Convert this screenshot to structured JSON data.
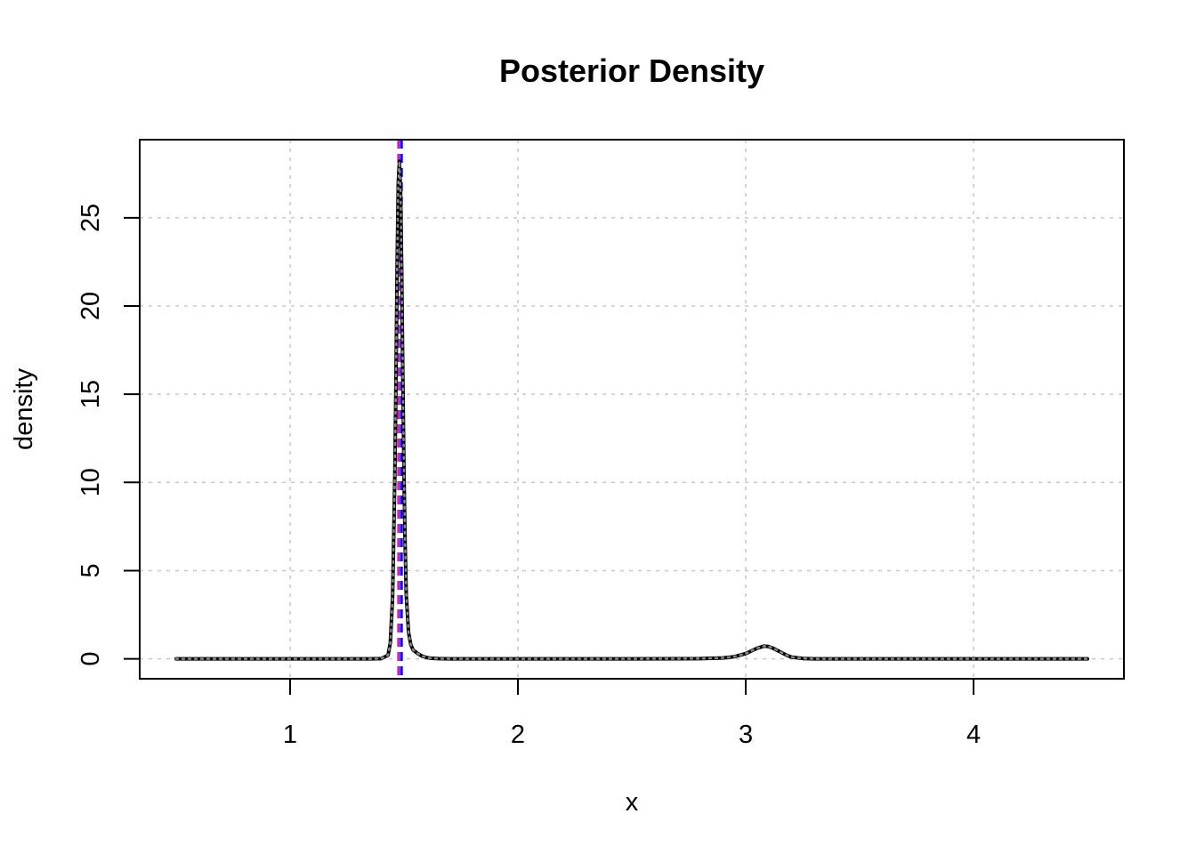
{
  "chart_data": {
    "type": "line",
    "title": "Posterior Density",
    "xlabel": "x",
    "ylabel": "density",
    "xlim": [
      0.34,
      4.66
    ],
    "ylim": [
      -1.13,
      29.43
    ],
    "x_ticks": [
      1,
      2,
      3,
      4
    ],
    "y_ticks": [
      0,
      5,
      10,
      15,
      20,
      25
    ],
    "x_tick_labels": [
      "1",
      "2",
      "3",
      "4"
    ],
    "y_tick_labels": [
      "0",
      "5",
      "10",
      "15",
      "20",
      "25"
    ],
    "grid": true,
    "series": [
      {
        "color": "#000000",
        "style": "solid",
        "x": [
          0.5,
          0.8,
          1.0,
          1.2,
          1.35,
          1.4,
          1.43,
          1.44,
          1.45,
          1.46,
          1.465,
          1.47,
          1.475,
          1.48,
          1.485,
          1.49,
          1.495,
          1.5,
          1.505,
          1.51,
          1.52,
          1.53,
          1.54,
          1.56,
          1.58,
          1.6,
          1.62,
          1.65,
          1.7,
          1.8,
          2.0,
          2.2,
          2.5,
          2.8,
          2.9,
          2.95,
          3.0,
          3.02,
          3.05,
          3.08,
          3.1,
          3.12,
          3.15,
          3.18,
          3.2,
          3.25,
          3.3,
          3.5,
          4.0,
          4.5
        ],
        "y": [
          0,
          0,
          0,
          0,
          0,
          0.01,
          0.2,
          0.9,
          3.5,
          10.5,
          16.0,
          22.5,
          27.0,
          28.2,
          26.5,
          22.0,
          16.0,
          10.5,
          6.5,
          3.6,
          1.5,
          0.8,
          0.5,
          0.3,
          0.15,
          0.07,
          0.03,
          0.01,
          0,
          0,
          0,
          0,
          0,
          0.01,
          0.05,
          0.12,
          0.3,
          0.42,
          0.6,
          0.72,
          0.7,
          0.6,
          0.4,
          0.2,
          0.1,
          0.02,
          0,
          0,
          0,
          0
        ]
      },
      {
        "color": "#888888",
        "style": "dotted",
        "x": [
          0.5,
          0.8,
          1.0,
          1.2,
          1.35,
          1.4,
          1.43,
          1.44,
          1.45,
          1.46,
          1.465,
          1.47,
          1.475,
          1.48,
          1.485,
          1.49,
          1.495,
          1.5,
          1.505,
          1.51,
          1.52,
          1.53,
          1.54,
          1.56,
          1.58,
          1.6,
          1.62,
          1.65,
          1.7,
          1.8,
          2.0,
          2.2,
          2.5,
          2.8,
          2.9,
          2.95,
          3.0,
          3.02,
          3.05,
          3.08,
          3.1,
          3.12,
          3.15,
          3.18,
          3.2,
          3.25,
          3.3,
          3.5,
          4.0,
          4.5
        ],
        "y": [
          0,
          0,
          0,
          0,
          0,
          0.01,
          0.2,
          0.9,
          3.5,
          10.5,
          16.0,
          22.5,
          27.0,
          28.2,
          26.5,
          22.0,
          16.0,
          10.5,
          6.5,
          3.6,
          1.5,
          0.8,
          0.5,
          0.3,
          0.15,
          0.07,
          0.03,
          0.01,
          0,
          0,
          0,
          0,
          0,
          0.01,
          0.05,
          0.12,
          0.3,
          0.42,
          0.6,
          0.72,
          0.7,
          0.6,
          0.4,
          0.2,
          0.1,
          0.02,
          0,
          0,
          0,
          0
        ]
      }
    ],
    "vlines": [
      {
        "x": 1.475,
        "color": "#ff1493",
        "style": "dashed"
      },
      {
        "x": 1.48,
        "color": "#9b30ff",
        "style": "dashed"
      },
      {
        "x": 1.49,
        "color": "#0000ff",
        "style": "dashed"
      }
    ],
    "colors": {
      "grid": "#c8c8c8",
      "frame": "#000000"
    }
  }
}
